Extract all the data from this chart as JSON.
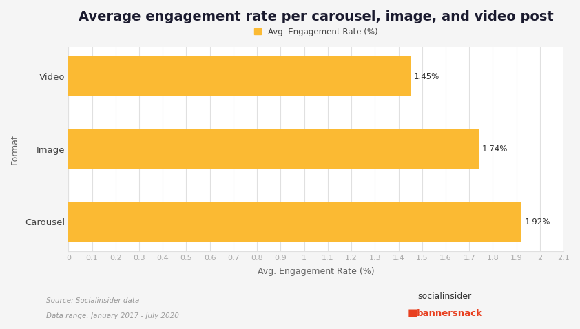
{
  "title": "Average engagement rate per carousel, image, and video post",
  "legend_label": "Avg. Engagement Rate (%)",
  "categories": [
    "Carousel",
    "Image",
    "Video"
  ],
  "values": [
    1.92,
    1.74,
    1.45
  ],
  "bar_color": "#FBBA33",
  "bar_labels": [
    "1.92%",
    "1.74%",
    "1.45%"
  ],
  "xlabel": "Avg. Engagement Rate (%)",
  "ylabel": "Format",
  "xlim": [
    0,
    2.1
  ],
  "xticks": [
    0,
    0.1,
    0.2,
    0.3,
    0.4,
    0.5,
    0.6,
    0.7,
    0.8,
    0.9,
    1.0,
    1.1,
    1.2,
    1.3,
    1.4,
    1.5,
    1.6,
    1.7,
    1.8,
    1.9,
    2.0,
    2.1
  ],
  "source_line1": "Source: Socialinsider data",
  "source_line2": "Data range: January 2017 - July 2020",
  "background_color": "#ffffff",
  "outer_bg": "#f0f0f0",
  "title_fontsize": 14,
  "tick_fontsize": 8,
  "tick_color": "#aaaaaa",
  "grid_color": "#e0e0e0",
  "label_fontsize": 9,
  "bar_height": 0.55
}
